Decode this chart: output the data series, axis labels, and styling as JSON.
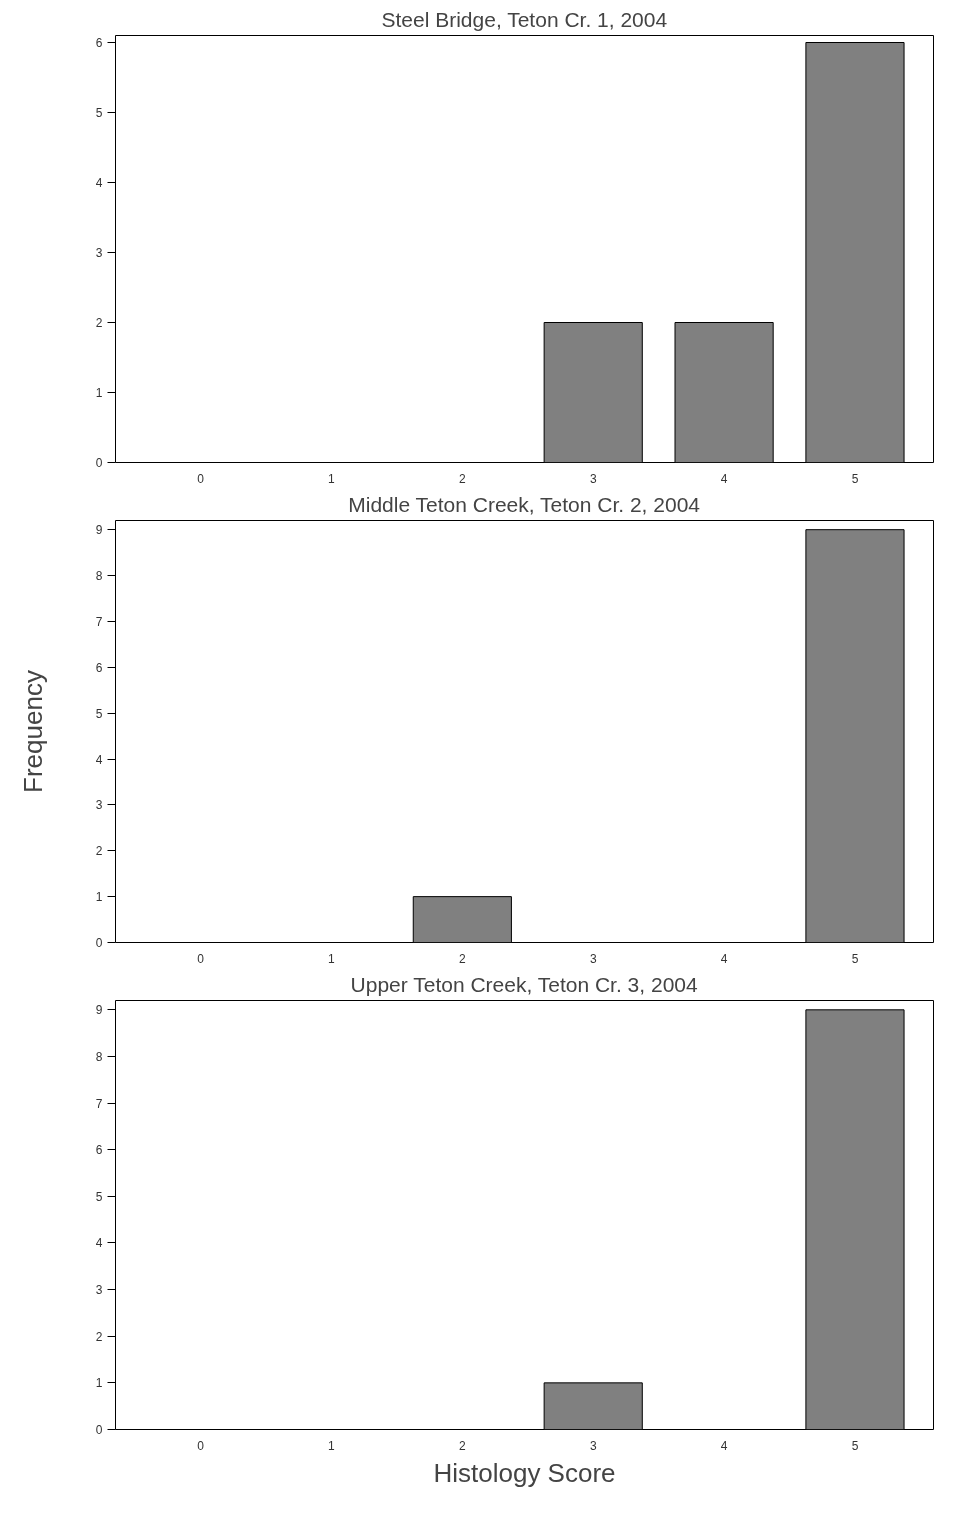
{
  "chart_data": [
    {
      "type": "bar",
      "title": "Steel Bridge, Teton Cr. 1, 2004",
      "categories": [
        "0",
        "1",
        "2",
        "3",
        "4",
        "5"
      ],
      "values": [
        0,
        0,
        0,
        2,
        2,
        6
      ],
      "color": "#808080",
      "ylim": [
        0,
        6.1
      ],
      "yticks": [
        0,
        1,
        2,
        3,
        4,
        5,
        6
      ],
      "grid": false
    },
    {
      "type": "bar",
      "title": "Middle Teton Creek, Teton Cr. 2, 2004",
      "ylabel": "Frequency",
      "categories": [
        "0",
        "1",
        "2",
        "3",
        "4",
        "5"
      ],
      "values": [
        0,
        0,
        1,
        0,
        0,
        9
      ],
      "color": "#808080",
      "ylim": [
        0,
        9.2
      ],
      "yticks": [
        0,
        1,
        2,
        3,
        4,
        5,
        6,
        7,
        8,
        9
      ],
      "grid": false
    },
    {
      "type": "bar",
      "title": "Upper Teton Creek, Teton Cr. 3, 2004",
      "xlabel": "Histology Score",
      "categories": [
        "0",
        "1",
        "2",
        "3",
        "4",
        "5"
      ],
      "values": [
        0,
        0,
        0,
        1,
        0,
        9
      ],
      "color": "#808080",
      "ylim": [
        0,
        9.2
      ],
      "yticks": [
        0,
        1,
        2,
        3,
        4,
        5,
        6,
        7,
        8,
        9
      ],
      "grid": false
    }
  ]
}
